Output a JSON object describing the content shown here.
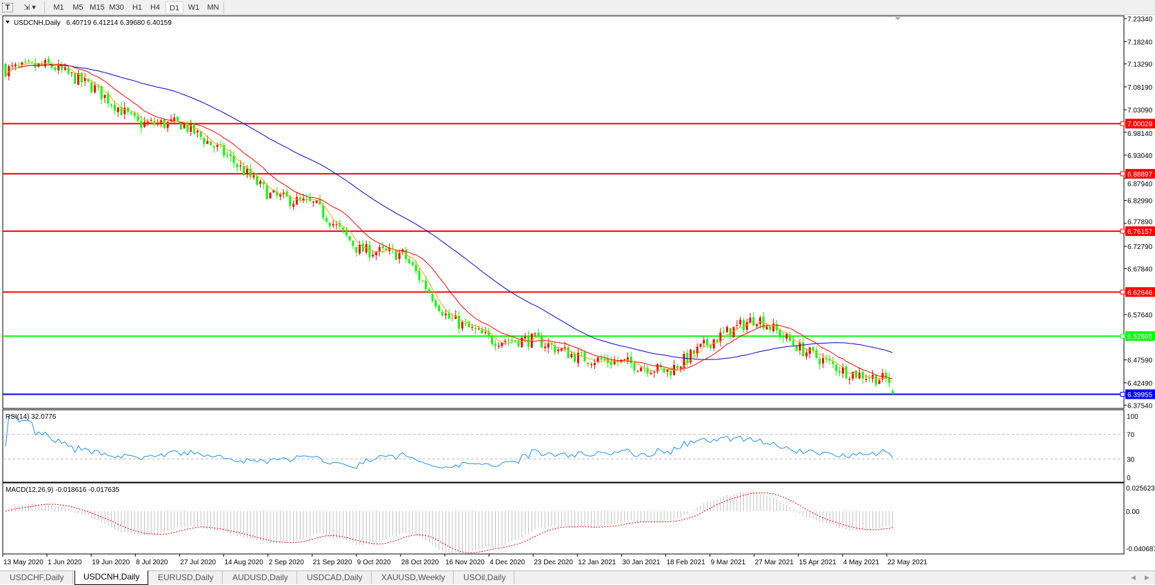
{
  "toolbar": {
    "timeframes": [
      "M1",
      "M5",
      "M15",
      "M30",
      "H1",
      "H4",
      "D1",
      "W1",
      "MN"
    ],
    "active_timeframe": "D1"
  },
  "chart_data": {
    "type": "candlestick",
    "symbol_label": "USDCNH,Daily",
    "ohlc_label": "6.40719 6.41214 6.39680 6.40159",
    "last": {
      "open": 6.40719,
      "high": 6.41214,
      "low": 6.3968,
      "close": 6.40159
    },
    "ylim": [
      6.3754,
      7.2334
    ],
    "y_ticks": [
      "7.23340",
      "7.18240",
      "7.13290",
      "7.08190",
      "7.03090",
      "6.98140",
      "6.93040",
      "6.87940",
      "6.82990",
      "6.77890",
      "6.72790",
      "6.67840",
      "6.57640",
      "6.47590",
      "6.42490",
      "6.37540"
    ],
    "x_ticks": [
      "13 May 2020",
      "1 Jun 2020",
      "19 Jun 2020",
      "8 Jul 2020",
      "27 Jul 2020",
      "14 Aug 2020",
      "2 Sep 2020",
      "21 Sep 2020",
      "9 Oct 2020",
      "28 Oct 2020",
      "16 Nov 2020",
      "4 Dec 2020",
      "23 Dec 2020",
      "12 Jan 2021",
      "30 Jan 2021",
      "18 Feb 2021",
      "9 Mar 2021",
      "27 Mar 2021",
      "15 Apr 2021",
      "4 May 2021",
      "22 May 2021"
    ],
    "approx_close_at_ticks": [
      7.12,
      7.13,
      7.08,
      7.0,
      7.0,
      6.93,
      6.84,
      6.82,
      6.72,
      6.71,
      6.57,
      6.52,
      6.52,
      6.48,
      6.47,
      6.45,
      6.52,
      6.57,
      6.5,
      6.45,
      6.43
    ],
    "colors": {
      "bull": "#ff0000",
      "bear": "#00ff00",
      "ma_fast": "#ffa500",
      "ma_mid": "#ff0000",
      "ma_slow": "#0000cd"
    },
    "levels": [
      {
        "value": "7.00029",
        "color": "#ff0000"
      },
      {
        "value": "6.88897",
        "color": "#ff0000"
      },
      {
        "value": "6.76157",
        "color": "#ff0000"
      },
      {
        "value": "6.62646",
        "color": "#ff0000"
      },
      {
        "value": "6.52865",
        "color": "#00ff00"
      },
      {
        "value": "6.39955",
        "color": "#0000ff"
      }
    ],
    "rsi": {
      "label": "RSI(14) 32.0776",
      "ticks": [
        "100",
        "70",
        "30",
        "0"
      ],
      "color": "#1e90ff",
      "last": 32.0776
    },
    "macd": {
      "label": "MACD(12,26,9) -0.018616 -0.017635",
      "ticks": [
        "0.025623",
        "0.00",
        "-0.040687"
      ],
      "last_main": -0.018616,
      "last_signal": -0.017635
    }
  },
  "tabs": [
    "USDCHF,Daily",
    "USDCNH,Daily",
    "EURUSD,Daily",
    "AUDUSD,Daily",
    "USDCAD,Daily",
    "XAUUSD,Weekly",
    "USOil,Daily"
  ],
  "active_tab": "USDCNH,Daily"
}
